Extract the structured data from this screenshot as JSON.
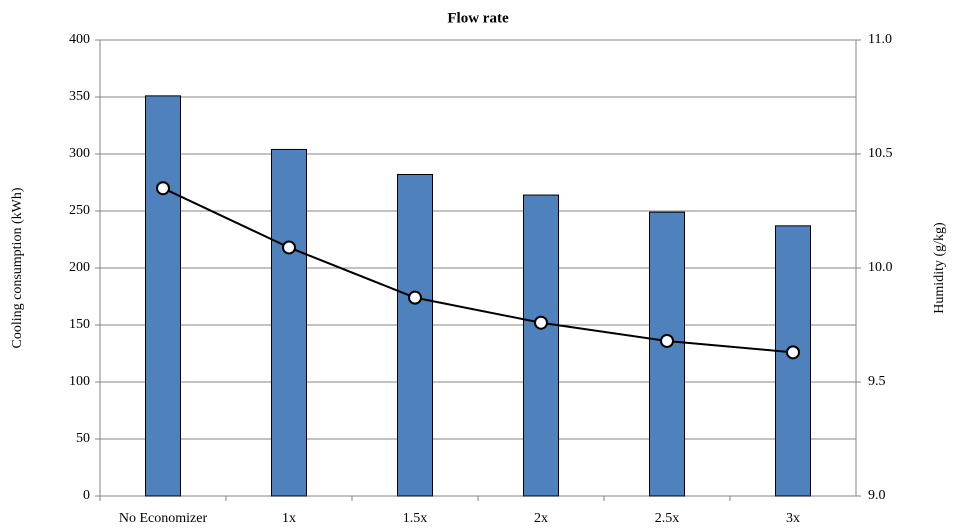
{
  "chart_data": {
    "type": "bar",
    "title": "Flow rate",
    "y_label": "Cooling consumption (kWh)",
    "y2_label": "Humidity (g/kg)",
    "categories": [
      "No Economizer",
      "1x",
      "1.5x",
      "2x",
      "2.5x",
      "3x"
    ],
    "series": [
      {
        "type": "bar",
        "color": "#4f81bd",
        "values": [
          351,
          304,
          282,
          264,
          249,
          237
        ]
      },
      {
        "type": "line",
        "axis": "y2",
        "color": "#000000",
        "values": [
          10.35,
          10.09,
          9.87,
          9.76,
          9.68,
          9.63
        ]
      }
    ],
    "ylim": [
      0,
      400
    ],
    "yticks": [
      0,
      50,
      100,
      150,
      200,
      250,
      300,
      350,
      400
    ],
    "y2lim": [
      9,
      11
    ],
    "y2ticks": [
      {
        "value": 9,
        "label": "9.0"
      },
      9.5,
      {
        "value": 10,
        "label": "10.0"
      },
      10.5,
      {
        "value": 11,
        "label": "11.0"
      }
    ],
    "grid": true
  }
}
